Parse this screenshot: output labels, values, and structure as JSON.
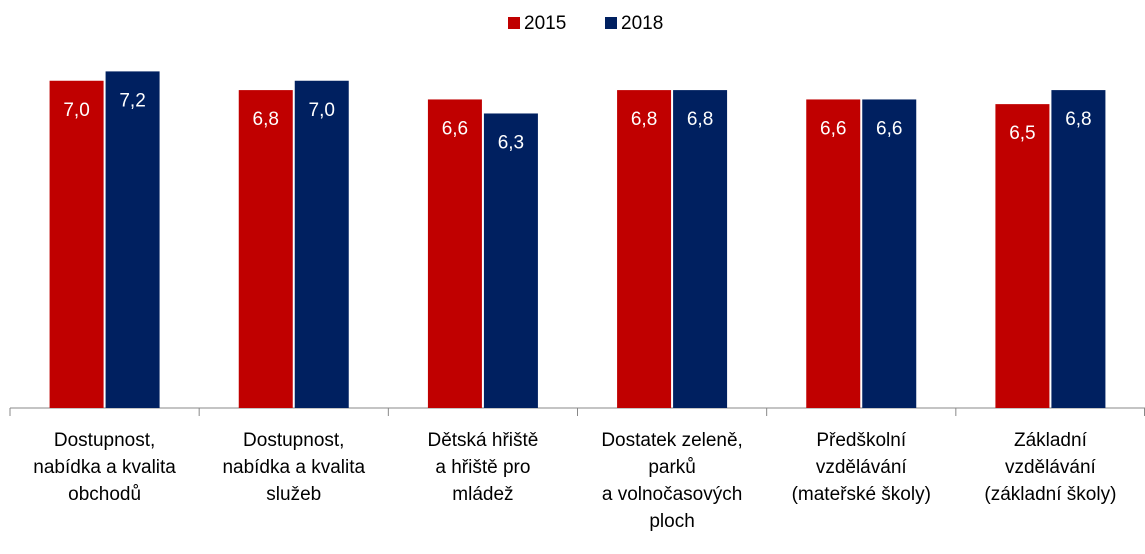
{
  "chart_data": {
    "type": "bar",
    "categories": [
      "Dostupnost,\nnabídka a kvalita\nobchodů",
      "Dostupnost,\nnabídka a kvalita\nslužeb",
      "Dětská hřiště\na hřiště pro\nmládež",
      "Dostatek zeleně,\nparků\na volnočasových\nploch",
      "Předškolní\nvzdělávání\n(mateřské školy)",
      "Základní\nvzdělávání\n(základní školy)"
    ],
    "series": [
      {
        "name": "2015",
        "color": "#c00000",
        "values": [
          7.0,
          6.8,
          6.6,
          6.8,
          6.6,
          6.5
        ],
        "value_labels": [
          "7,0",
          "6,8",
          "6,6",
          "6,8",
          "6,6",
          "6,5"
        ]
      },
      {
        "name": "2018",
        "color": "#002060",
        "values": [
          7.2,
          7.0,
          6.3,
          6.8,
          6.6,
          6.8
        ],
        "value_labels": [
          "7,2",
          "7,0",
          "6,3",
          "6,8",
          "6,6",
          "6,8"
        ]
      }
    ],
    "ylim": [
      0,
      8
    ],
    "legend": "top"
  }
}
